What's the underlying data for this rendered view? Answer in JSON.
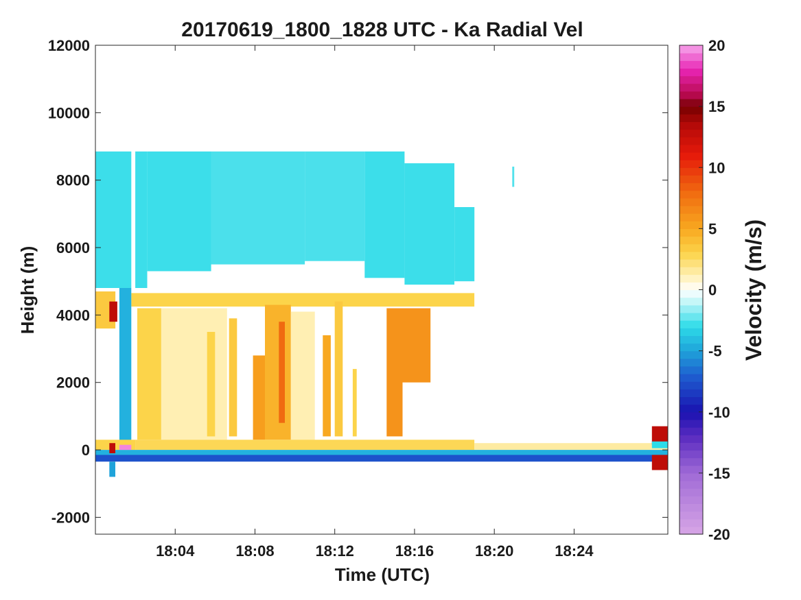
{
  "chart_data": {
    "type": "heatmap",
    "title": "20170619_1800_1828 UTC - Ka Radial Vel",
    "xlabel": "Time (UTC)",
    "ylabel": "Height (m)",
    "colorbar_label": "Velocity (m/s)",
    "xlim_minutes_after_1800": [
      0,
      28.7
    ],
    "ylim": [
      -2500,
      12000
    ],
    "x_ticks": [
      {
        "label": "18:04",
        "minute": 4
      },
      {
        "label": "18:08",
        "minute": 8
      },
      {
        "label": "18:12",
        "minute": 12
      },
      {
        "label": "18:16",
        "minute": 16
      },
      {
        "label": "18:20",
        "minute": 20
      },
      {
        "label": "18:24",
        "minute": 24
      }
    ],
    "y_ticks": [
      {
        "label": "12000",
        "value": 12000
      },
      {
        "label": "10000",
        "value": 10000
      },
      {
        "label": "8000",
        "value": 8000
      },
      {
        "label": "6000",
        "value": 6000
      },
      {
        "label": "4000",
        "value": 4000
      },
      {
        "label": "2000",
        "value": 2000
      },
      {
        "label": "0",
        "value": 0
      },
      {
        "label": "-2000",
        "value": -2000
      }
    ],
    "colorbar": {
      "range": [
        -20,
        20
      ],
      "ticks": [
        {
          "label": "20",
          "value": 20
        },
        {
          "label": "15",
          "value": 15
        },
        {
          "label": "10",
          "value": 10
        },
        {
          "label": "5",
          "value": 5
        },
        {
          "label": "0",
          "value": 0
        },
        {
          "label": "-5",
          "value": -5
        },
        {
          "label": "-10",
          "value": -10
        },
        {
          "label": "-15",
          "value": -15
        },
        {
          "label": "-20",
          "value": -20
        }
      ],
      "colormap_stops": [
        {
          "v": -20,
          "color": "#d7a6e6"
        },
        {
          "v": -15,
          "color": "#9f6ad6"
        },
        {
          "v": -12,
          "color": "#5a2bc0"
        },
        {
          "v": -10,
          "color": "#1a12b0"
        },
        {
          "v": -7,
          "color": "#1e5fd0"
        },
        {
          "v": -5,
          "color": "#1fa3da"
        },
        {
          "v": -3,
          "color": "#2ddbe8"
        },
        {
          "v": -1,
          "color": "#c2f6f8"
        },
        {
          "v": 0,
          "color": "#ffffff"
        },
        {
          "v": 1,
          "color": "#fff2bf"
        },
        {
          "v": 3,
          "color": "#fcd44a"
        },
        {
          "v": 5,
          "color": "#f8a820"
        },
        {
          "v": 8,
          "color": "#f06a10"
        },
        {
          "v": 11,
          "color": "#e61a0a"
        },
        {
          "v": 13.5,
          "color": "#b40a08"
        },
        {
          "v": 15,
          "color": "#760000"
        },
        {
          "v": 16,
          "color": "#b80a50"
        },
        {
          "v": 18,
          "color": "#e825b4"
        },
        {
          "v": 20,
          "color": "#f6a6ec"
        }
      ]
    },
    "regions": [
      {
        "t0": 0,
        "t1": 1.8,
        "z0": 4800,
        "z1": 8850,
        "v": -2.8
      },
      {
        "t0": 2.0,
        "t1": 2.6,
        "z0": 4800,
        "z1": 8850,
        "v": -2.8
      },
      {
        "t0": 2.6,
        "t1": 5.8,
        "z0": 5300,
        "z1": 8850,
        "v": -2.8
      },
      {
        "t0": 5.8,
        "t1": 10.5,
        "z0": 5500,
        "z1": 8850,
        "v": -2.6
      },
      {
        "t0": 10.5,
        "t1": 13.5,
        "z0": 5600,
        "z1": 8850,
        "v": -2.6
      },
      {
        "t0": 13.5,
        "t1": 15.5,
        "z0": 5100,
        "z1": 8850,
        "v": -2.8
      },
      {
        "t0": 15.5,
        "t1": 18.0,
        "z0": 4900,
        "z1": 8500,
        "v": -2.8
      },
      {
        "t0": 18.0,
        "t1": 19.0,
        "z0": 5000,
        "z1": 7200,
        "v": -2.8
      },
      {
        "t0": 20.9,
        "t1": 21.0,
        "z0": 7800,
        "z1": 8400,
        "v": -2.5
      },
      {
        "t0": 0,
        "t1": 1.0,
        "z0": 3600,
        "z1": 4700,
        "v": 3.5
      },
      {
        "t0": 1.8,
        "t1": 19.0,
        "z0": 4250,
        "z1": 4650,
        "v": 3.0
      },
      {
        "t0": 1.2,
        "t1": 1.8,
        "z0": 100,
        "z1": 4800,
        "v": -4.5
      },
      {
        "t0": 0.7,
        "t1": 1.1,
        "z0": 3800,
        "z1": 4400,
        "v": 13.0
      },
      {
        "t0": 2.1,
        "t1": 3.3,
        "z0": 300,
        "z1": 4200,
        "v": 3.0
      },
      {
        "t0": 3.3,
        "t1": 6.6,
        "z0": 300,
        "z1": 4200,
        "v": 1.2
      },
      {
        "t0": 5.6,
        "t1": 6.0,
        "z0": 400,
        "z1": 3500,
        "v": 3.0
      },
      {
        "t0": 6.7,
        "t1": 7.1,
        "z0": 400,
        "z1": 3900,
        "v": 3.5
      },
      {
        "t0": 7.9,
        "t1": 8.5,
        "z0": 300,
        "z1": 2800,
        "v": 5.5
      },
      {
        "t0": 8.5,
        "t1": 9.8,
        "z0": 300,
        "z1": 4300,
        "v": 4.5
      },
      {
        "t0": 9.2,
        "t1": 9.5,
        "z0": 800,
        "z1": 3800,
        "v": 8.0
      },
      {
        "t0": 9.8,
        "t1": 11.0,
        "z0": 300,
        "z1": 4100,
        "v": 1.2
      },
      {
        "t0": 11.4,
        "t1": 11.8,
        "z0": 400,
        "z1": 3400,
        "v": 5.0
      },
      {
        "t0": 12.0,
        "t1": 12.4,
        "z0": 400,
        "z1": 4400,
        "v": 3.5
      },
      {
        "t0": 12.9,
        "t1": 13.1,
        "z0": 400,
        "z1": 2400,
        "v": 3.0
      },
      {
        "t0": 14.6,
        "t1": 15.4,
        "z0": 400,
        "z1": 4200,
        "v": 6.0
      },
      {
        "t0": 15.4,
        "t1": 16.8,
        "z0": 2000,
        "z1": 4200,
        "v": 6.0
      },
      {
        "t0": 0,
        "t1": 2.0,
        "z0": 0,
        "z1": 300,
        "v": 3.0
      },
      {
        "t0": 2.0,
        "t1": 19.0,
        "z0": 0,
        "z1": 300,
        "v": 2.8
      },
      {
        "t0": 19.0,
        "t1": 28.7,
        "z0": 0,
        "z1": 200,
        "v": 1.5
      },
      {
        "t0": 0,
        "t1": 28.7,
        "z0": -150,
        "z1": 0,
        "v": -4.5
      },
      {
        "t0": 0,
        "t1": 28.7,
        "z0": -350,
        "z1": -150,
        "v": -7.5
      },
      {
        "t0": 0.7,
        "t1": 1.0,
        "z0": -800,
        "z1": -350,
        "v": -5.0
      },
      {
        "t0": 0.7,
        "t1": 1.0,
        "z0": -100,
        "z1": 200,
        "v": 13.0
      },
      {
        "t0": 1.2,
        "t1": 1.8,
        "z0": 0,
        "z1": 150,
        "v": 19.5
      },
      {
        "t0": 27.9,
        "t1": 28.7,
        "z0": 150,
        "z1": 700,
        "v": 13.0
      },
      {
        "t0": 27.9,
        "t1": 28.7,
        "z0": -600,
        "z1": -150,
        "v": 13.0
      },
      {
        "t0": 27.9,
        "t1": 28.7,
        "z0": 50,
        "z1": 250,
        "v": -3.0
      }
    ]
  }
}
